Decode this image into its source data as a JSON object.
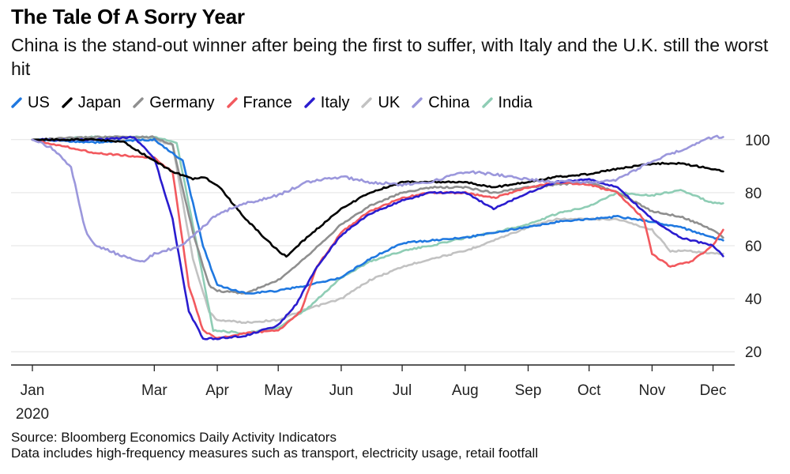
{
  "title": "The Tale Of A Sorry Year",
  "subtitle": "China is the stand-out winner after being the first to suffer, with Italy and the U.K. still the worst hit",
  "source": "Source: Bloomberg Economics Daily Activity Indicators",
  "note": "Data includes high-frequency measures such as transport, electricity usage, retail footfall",
  "chart_data": {
    "type": "line",
    "title": "The Tale Of A Sorry Year",
    "subtitle": "China is the stand-out winner after being the first to suffer, with Italy and the U.K. still the worst hit",
    "xlabel": "",
    "ylabel": "",
    "x_ticks": [
      {
        "label": "Jan",
        "month": 1
      },
      {
        "label": "Mar",
        "month": 3
      },
      {
        "label": "Apr",
        "month": 4
      },
      {
        "label": "May",
        "month": 5
      },
      {
        "label": "Jun",
        "month": 6
      },
      {
        "label": "Jul",
        "month": 7
      },
      {
        "label": "Aug",
        "month": 8
      },
      {
        "label": "Sep",
        "month": 9
      },
      {
        "label": "Oct",
        "month": 10
      },
      {
        "label": "Nov",
        "month": 11
      },
      {
        "label": "Dec",
        "month": 12
      }
    ],
    "x_year_label": "2020",
    "y_ticks": [
      20,
      40,
      60,
      80,
      100
    ],
    "ylim": [
      15,
      105
    ],
    "xlim": [
      "2020-01-01",
      "2020-12-07"
    ],
    "y_axis_side": "right",
    "grid": "horizontal",
    "legend_position": "top-left",
    "series": [
      {
        "name": "US",
        "color": "#1f78e0",
        "points": [
          [
            "2020-01-01",
            100
          ],
          [
            "2020-02-01",
            99
          ],
          [
            "2020-03-01",
            100
          ],
          [
            "2020-03-15",
            92
          ],
          [
            "2020-03-25",
            60
          ],
          [
            "2020-04-01",
            45
          ],
          [
            "2020-04-15",
            42
          ],
          [
            "2020-05-01",
            43
          ],
          [
            "2020-05-15",
            45
          ],
          [
            "2020-06-01",
            48
          ],
          [
            "2020-06-15",
            55
          ],
          [
            "2020-07-01",
            61
          ],
          [
            "2020-07-15",
            62
          ],
          [
            "2020-08-01",
            63
          ],
          [
            "2020-08-15",
            65
          ],
          [
            "2020-09-01",
            67
          ],
          [
            "2020-09-15",
            69
          ],
          [
            "2020-10-01",
            70
          ],
          [
            "2020-10-15",
            71
          ],
          [
            "2020-11-01",
            69
          ],
          [
            "2020-11-15",
            67
          ],
          [
            "2020-12-01",
            63
          ],
          [
            "2020-12-06",
            62
          ]
        ]
      },
      {
        "name": "Japan",
        "color": "#000000",
        "points": [
          [
            "2020-01-01",
            100
          ],
          [
            "2020-02-01",
            100
          ],
          [
            "2020-02-15",
            99
          ],
          [
            "2020-03-01",
            92
          ],
          [
            "2020-03-10",
            88
          ],
          [
            "2020-03-20",
            85
          ],
          [
            "2020-03-25",
            86
          ],
          [
            "2020-04-01",
            83
          ],
          [
            "2020-04-15",
            70
          ],
          [
            "2020-05-01",
            58
          ],
          [
            "2020-05-05",
            56
          ],
          [
            "2020-05-15",
            63
          ],
          [
            "2020-06-01",
            74
          ],
          [
            "2020-06-15",
            80
          ],
          [
            "2020-07-01",
            84
          ],
          [
            "2020-07-15",
            84
          ],
          [
            "2020-08-01",
            84
          ],
          [
            "2020-08-15",
            82
          ],
          [
            "2020-09-01",
            84
          ],
          [
            "2020-09-15",
            86
          ],
          [
            "2020-10-01",
            87
          ],
          [
            "2020-10-15",
            89
          ],
          [
            "2020-11-01",
            91
          ],
          [
            "2020-11-15",
            91
          ],
          [
            "2020-12-01",
            89
          ],
          [
            "2020-12-06",
            88
          ]
        ]
      },
      {
        "name": "Germany",
        "color": "#8f8f8f",
        "points": [
          [
            "2020-01-01",
            100
          ],
          [
            "2020-02-01",
            101
          ],
          [
            "2020-03-01",
            101
          ],
          [
            "2020-03-10",
            98
          ],
          [
            "2020-03-20",
            65
          ],
          [
            "2020-03-28",
            45
          ],
          [
            "2020-04-01",
            43
          ],
          [
            "2020-04-15",
            42
          ],
          [
            "2020-05-01",
            47
          ],
          [
            "2020-05-15",
            56
          ],
          [
            "2020-06-01",
            68
          ],
          [
            "2020-06-15",
            75
          ],
          [
            "2020-07-01",
            80
          ],
          [
            "2020-07-15",
            82
          ],
          [
            "2020-08-01",
            82
          ],
          [
            "2020-08-15",
            80
          ],
          [
            "2020-09-01",
            82
          ],
          [
            "2020-09-15",
            83
          ],
          [
            "2020-10-01",
            84
          ],
          [
            "2020-10-15",
            80
          ],
          [
            "2020-11-01",
            73
          ],
          [
            "2020-11-15",
            71
          ],
          [
            "2020-12-01",
            66
          ],
          [
            "2020-12-06",
            63
          ]
        ]
      },
      {
        "name": "France",
        "color": "#f2595e",
        "points": [
          [
            "2020-01-01",
            100
          ],
          [
            "2020-02-01",
            95
          ],
          [
            "2020-03-01",
            93
          ],
          [
            "2020-03-10",
            88
          ],
          [
            "2020-03-18",
            45
          ],
          [
            "2020-03-25",
            28
          ],
          [
            "2020-04-01",
            25
          ],
          [
            "2020-04-15",
            27
          ],
          [
            "2020-05-01",
            28
          ],
          [
            "2020-05-12",
            35
          ],
          [
            "2020-05-20",
            52
          ],
          [
            "2020-06-01",
            65
          ],
          [
            "2020-06-15",
            73
          ],
          [
            "2020-07-01",
            78
          ],
          [
            "2020-07-15",
            80
          ],
          [
            "2020-08-01",
            80
          ],
          [
            "2020-08-15",
            78
          ],
          [
            "2020-09-01",
            82
          ],
          [
            "2020-09-15",
            84
          ],
          [
            "2020-10-01",
            83
          ],
          [
            "2020-10-15",
            80
          ],
          [
            "2020-10-28",
            70
          ],
          [
            "2020-11-01",
            57
          ],
          [
            "2020-11-10",
            52
          ],
          [
            "2020-11-20",
            54
          ],
          [
            "2020-12-01",
            60
          ],
          [
            "2020-12-06",
            66
          ]
        ]
      },
      {
        "name": "Italy",
        "color": "#2a1ccf",
        "points": [
          [
            "2020-01-01",
            100
          ],
          [
            "2020-02-01",
            100
          ],
          [
            "2020-02-20",
            101
          ],
          [
            "2020-03-01",
            93
          ],
          [
            "2020-03-10",
            70
          ],
          [
            "2020-03-18",
            35
          ],
          [
            "2020-03-25",
            25
          ],
          [
            "2020-04-01",
            25
          ],
          [
            "2020-04-15",
            26
          ],
          [
            "2020-05-01",
            30
          ],
          [
            "2020-05-10",
            38
          ],
          [
            "2020-05-20",
            52
          ],
          [
            "2020-06-01",
            64
          ],
          [
            "2020-06-15",
            72
          ],
          [
            "2020-07-01",
            77
          ],
          [
            "2020-07-15",
            80
          ],
          [
            "2020-08-01",
            80
          ],
          [
            "2020-08-15",
            74
          ],
          [
            "2020-09-01",
            80
          ],
          [
            "2020-09-15",
            84
          ],
          [
            "2020-10-01",
            85
          ],
          [
            "2020-10-15",
            82
          ],
          [
            "2020-11-01",
            70
          ],
          [
            "2020-11-15",
            63
          ],
          [
            "2020-12-01",
            60
          ],
          [
            "2020-12-06",
            56
          ]
        ]
      },
      {
        "name": "UK",
        "color": "#c2c2c2",
        "points": [
          [
            "2020-01-01",
            100
          ],
          [
            "2020-02-01",
            100
          ],
          [
            "2020-03-01",
            100
          ],
          [
            "2020-03-10",
            98
          ],
          [
            "2020-03-20",
            55
          ],
          [
            "2020-03-28",
            35
          ],
          [
            "2020-04-01",
            32
          ],
          [
            "2020-04-15",
            31
          ],
          [
            "2020-05-01",
            32
          ],
          [
            "2020-05-15",
            36
          ],
          [
            "2020-06-01",
            40
          ],
          [
            "2020-06-15",
            47
          ],
          [
            "2020-07-01",
            52
          ],
          [
            "2020-07-15",
            55
          ],
          [
            "2020-08-01",
            58
          ],
          [
            "2020-08-15",
            62
          ],
          [
            "2020-09-01",
            67
          ],
          [
            "2020-09-15",
            70
          ],
          [
            "2020-10-01",
            70
          ],
          [
            "2020-10-15",
            70
          ],
          [
            "2020-11-01",
            66
          ],
          [
            "2020-11-10",
            58
          ],
          [
            "2020-11-20",
            58
          ],
          [
            "2020-12-01",
            57
          ],
          [
            "2020-12-06",
            57
          ]
        ]
      },
      {
        "name": "China",
        "color": "#9b97dc",
        "points": [
          [
            "2020-01-01",
            100
          ],
          [
            "2020-01-10",
            97
          ],
          [
            "2020-01-20",
            90
          ],
          [
            "2020-01-27",
            66
          ],
          [
            "2020-02-01",
            60
          ],
          [
            "2020-02-15",
            56
          ],
          [
            "2020-02-25",
            54
          ],
          [
            "2020-03-01",
            57
          ],
          [
            "2020-03-15",
            60
          ],
          [
            "2020-04-01",
            72
          ],
          [
            "2020-04-15",
            76
          ],
          [
            "2020-05-01",
            79
          ],
          [
            "2020-05-15",
            84
          ],
          [
            "2020-06-01",
            86
          ],
          [
            "2020-06-15",
            84
          ],
          [
            "2020-07-01",
            83
          ],
          [
            "2020-07-15",
            84
          ],
          [
            "2020-08-01",
            88
          ],
          [
            "2020-08-15",
            87
          ],
          [
            "2020-09-01",
            85
          ],
          [
            "2020-09-15",
            84
          ],
          [
            "2020-10-01",
            84
          ],
          [
            "2020-10-15",
            85
          ],
          [
            "2020-11-01",
            92
          ],
          [
            "2020-11-15",
            96
          ],
          [
            "2020-12-01",
            101
          ],
          [
            "2020-12-06",
            101
          ]
        ]
      },
      {
        "name": "India",
        "color": "#8fcdb5",
        "points": [
          [
            "2020-01-01",
            100
          ],
          [
            "2020-02-01",
            101
          ],
          [
            "2020-03-01",
            101
          ],
          [
            "2020-03-12",
            99
          ],
          [
            "2020-03-22",
            60
          ],
          [
            "2020-03-30",
            28
          ],
          [
            "2020-04-15",
            27
          ],
          [
            "2020-05-01",
            29
          ],
          [
            "2020-05-15",
            36
          ],
          [
            "2020-06-01",
            48
          ],
          [
            "2020-06-15",
            54
          ],
          [
            "2020-07-01",
            58
          ],
          [
            "2020-07-15",
            60
          ],
          [
            "2020-08-01",
            63
          ],
          [
            "2020-08-15",
            65
          ],
          [
            "2020-09-01",
            68
          ],
          [
            "2020-09-15",
            72
          ],
          [
            "2020-10-01",
            75
          ],
          [
            "2020-10-15",
            80
          ],
          [
            "2020-11-01",
            79
          ],
          [
            "2020-11-15",
            81
          ],
          [
            "2020-12-01",
            76
          ],
          [
            "2020-12-06",
            76
          ]
        ]
      }
    ]
  }
}
